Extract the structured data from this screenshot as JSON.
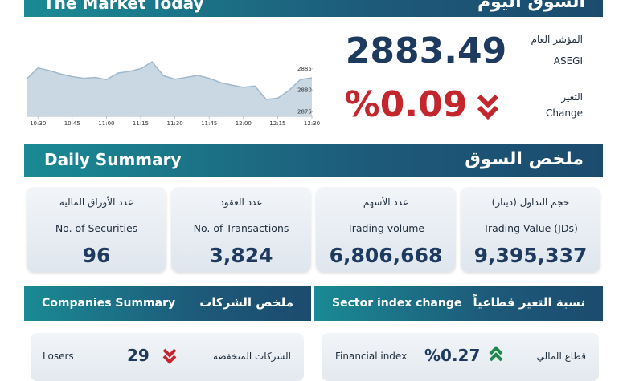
{
  "header": {
    "title_en": "The Market Today",
    "title_ar": "السوق اليوم"
  },
  "index": {
    "label_ar": "المؤشر العام",
    "label_en": "ASEGI",
    "value": "2883.49",
    "change_label_ar": "التغير",
    "change_label_en": "Change",
    "change": "%0.09"
  },
  "chart_data": {
    "type": "line",
    "categories": [
      null,
      "10:30",
      null,
      null,
      "10:45",
      null,
      null,
      "11:00",
      null,
      null,
      "11:15",
      null,
      null,
      "11:30",
      null,
      null,
      "11:45",
      null,
      null,
      "12:00",
      null,
      null,
      "12:15",
      null,
      null,
      "12:30"
    ],
    "series": [
      {
        "color": "#9fb8cc",
        "values": [
          2882.6,
          2885.2,
          2884.6,
          2883.8,
          2883.2,
          2882.8,
          2883.0,
          2882.5,
          2884.0,
          2884.4,
          2885.0,
          2886.6,
          2883.4,
          2882.6,
          2883.0,
          2883.5,
          2882.8,
          2881.8,
          2881.2,
          2880.7,
          2881.0,
          2877.9,
          2878.2,
          2880.0,
          2882.5,
          2882.9
        ]
      }
    ],
    "ylim": [
      2874,
      2887
    ],
    "yticks": [
      2875,
      2880,
      2885
    ]
  },
  "daily_summary": {
    "title_en": "Daily Summary",
    "title_ar": "ملخص السوق",
    "cards": [
      {
        "label_ar": "عدد الأوراق المالية",
        "label_en": "No. of Securities",
        "value": "96"
      },
      {
        "label_ar": "عدد العقود",
        "label_en": "No. of Transactions",
        "value": "3,824"
      },
      {
        "label_ar": "عدد الأسهم",
        "label_en": "Trading volume",
        "value": "6,806,668"
      },
      {
        "label_ar": "حجم التداول (دينار)",
        "label_en": "Trading Value (JDs)",
        "value": "9,395,337"
      }
    ]
  },
  "companies_summary": {
    "title_en": "Companies Summary",
    "title_ar": "ملخص الشركات",
    "rows": [
      {
        "label_en": "Losers",
        "value": "29",
        "label_ar": "الشركات المنخفضة"
      }
    ]
  },
  "sector_change": {
    "title_en": "Sector index change",
    "title_ar": "نسبة التغير قطاعياً",
    "rows": [
      {
        "label_en": "Financial index",
        "value": "%0.27",
        "label_ar": "قطاع المالي"
      }
    ]
  }
}
